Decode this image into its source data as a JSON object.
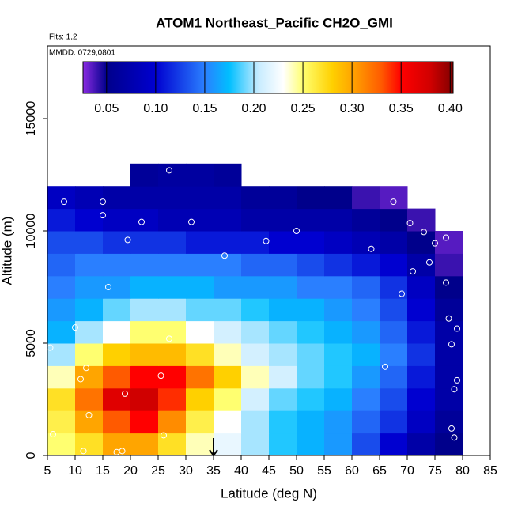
{
  "chart_data": {
    "type": "heatmap",
    "title": "ATOM1 Northeast_Pacific CH2O_GMI",
    "subtitle": "Flts: 1,2",
    "annotation": "MMDD: 0729,0801",
    "x_label": "Latitude (deg N)",
    "y_label": "Altitude (m)",
    "xlim": [
      5,
      85
    ],
    "ylim": [
      0,
      18240
    ],
    "xticks": [
      5,
      10,
      15,
      20,
      25,
      30,
      35,
      40,
      45,
      50,
      55,
      60,
      65,
      70,
      75,
      80,
      85
    ],
    "yticks": [
      0,
      5000,
      10000,
      15000
    ],
    "cell_width": 5,
    "cell_height": 1000,
    "x": [
      7.5,
      12.5,
      17.5,
      22.5,
      27.5,
      32.5,
      37.5,
      42.5,
      47.5,
      52.5,
      57.5,
      62.5,
      67.5,
      72.5,
      77.5
    ],
    "y": [
      500,
      1500,
      2500,
      3500,
      4500,
      5500,
      6500,
      7500,
      8500,
      9500,
      10500,
      11500,
      12500
    ],
    "z": [
      [
        0.25,
        0.27,
        0.3,
        0.3,
        0.27,
        0.24,
        0.22,
        0.2,
        0.18,
        0.17,
        0.16,
        0.13,
        0.1,
        0.07,
        0.05
      ],
      [
        0.26,
        0.3,
        0.33,
        0.35,
        0.31,
        0.26,
        0.23,
        0.2,
        0.18,
        0.17,
        0.16,
        0.14,
        0.12,
        0.09,
        0.06
      ],
      [
        0.27,
        0.32,
        0.37,
        0.38,
        0.34,
        0.28,
        0.25,
        0.21,
        0.19,
        0.18,
        0.17,
        0.15,
        0.13,
        0.1,
        0.07
      ],
      [
        0.24,
        0.3,
        0.33,
        0.35,
        0.35,
        0.32,
        0.28,
        0.24,
        0.21,
        0.19,
        0.18,
        0.16,
        0.14,
        0.11,
        0.07
      ],
      [
        0.2,
        0.25,
        0.28,
        0.29,
        0.29,
        0.27,
        0.24,
        0.21,
        0.2,
        0.19,
        0.18,
        0.17,
        0.15,
        0.12,
        0.07
      ],
      [
        0.17,
        0.2,
        0.23,
        0.25,
        0.25,
        0.23,
        0.21,
        0.2,
        0.19,
        0.18,
        0.17,
        0.16,
        0.14,
        0.11,
        0.07
      ],
      [
        0.16,
        0.17,
        0.19,
        0.2,
        0.2,
        0.19,
        0.19,
        0.18,
        0.17,
        0.17,
        0.16,
        0.15,
        0.13,
        0.1,
        0.06
      ],
      [
        0.15,
        0.16,
        0.16,
        0.17,
        0.17,
        0.17,
        0.16,
        0.16,
        0.16,
        0.15,
        0.15,
        0.14,
        0.12,
        0.09,
        0.05
      ],
      [
        0.14,
        0.15,
        0.15,
        0.15,
        0.15,
        0.15,
        0.15,
        0.14,
        0.14,
        0.13,
        0.12,
        0.11,
        0.1,
        0.07,
        0.04
      ],
      [
        0.13,
        0.13,
        0.12,
        0.12,
        0.12,
        0.11,
        0.11,
        0.11,
        0.1,
        0.1,
        0.09,
        0.08,
        0.07,
        0.05,
        0.035
      ],
      [
        0.11,
        0.1,
        0.09,
        0.09,
        0.08,
        0.08,
        0.08,
        0.07,
        0.07,
        0.07,
        0.07,
        0.06,
        0.05,
        0.04,
        null
      ],
      [
        0.09,
        0.08,
        0.07,
        0.07,
        0.07,
        0.07,
        0.07,
        0.06,
        0.06,
        0.05,
        0.05,
        0.04,
        0.035,
        null,
        null
      ],
      [
        null,
        null,
        null,
        0.06,
        0.065,
        0.065,
        0.06,
        null,
        null,
        null,
        null,
        null,
        null,
        null,
        null
      ]
    ],
    "colorbar_lim": [
      0.026,
      0.403
    ],
    "colorbar_ticks": [
      {
        "value": 0.05,
        "label": "0.05"
      },
      {
        "value": 0.1,
        "label": "0.10"
      },
      {
        "value": 0.15,
        "label": "0.15"
      },
      {
        "value": 0.2,
        "label": "0.20"
      },
      {
        "value": 0.25,
        "label": "0.25"
      },
      {
        "value": 0.3,
        "label": "0.30"
      },
      {
        "value": 0.35,
        "label": "0.35"
      },
      {
        "value": 0.4,
        "label": "0.40"
      }
    ],
    "colorscale": [
      [
        0.026,
        "#8a2be2"
      ],
      [
        0.05,
        "#00008b"
      ],
      [
        0.1,
        "#0000d0"
      ],
      [
        0.15,
        "#2a7fff"
      ],
      [
        0.175,
        "#00bfff"
      ],
      [
        0.205,
        "#c8ecff"
      ],
      [
        0.23,
        "#ffffff"
      ],
      [
        0.25,
        "#ffff70"
      ],
      [
        0.28,
        "#ffd000"
      ],
      [
        0.3,
        "#ffa500"
      ],
      [
        0.33,
        "#ff5a00"
      ],
      [
        0.35,
        "#ff0000"
      ],
      [
        0.38,
        "#d00000"
      ],
      [
        0.403,
        "#800000"
      ]
    ],
    "points": {
      "color": "#ffffff",
      "x": [
        8,
        15,
        15,
        22,
        31,
        19.5,
        37,
        44.5,
        50,
        63.5,
        67.5,
        70.5,
        73,
        75,
        77,
        74,
        71,
        77,
        69,
        77.5,
        79,
        78,
        66,
        79,
        78.5,
        78,
        78.5,
        5.5,
        10,
        16,
        16,
        27,
        25.5,
        11,
        12,
        19,
        12.5,
        6,
        26,
        11.5,
        17.5,
        18.5,
        27
      ],
      "y": [
        11300,
        11300,
        10700,
        10400,
        10400,
        9600,
        8900,
        9550,
        10000,
        9200,
        11300,
        10350,
        9950,
        9450,
        9700,
        8600,
        8200,
        7700,
        7200,
        6100,
        5650,
        4950,
        3950,
        3350,
        2950,
        1200,
        800,
        4800,
        5700,
        5550,
        7500,
        5200,
        3550,
        3400,
        3900,
        2750,
        1800,
        950,
        900,
        200,
        150,
        200,
        12700
      ]
    },
    "arrow_x": 35
  }
}
